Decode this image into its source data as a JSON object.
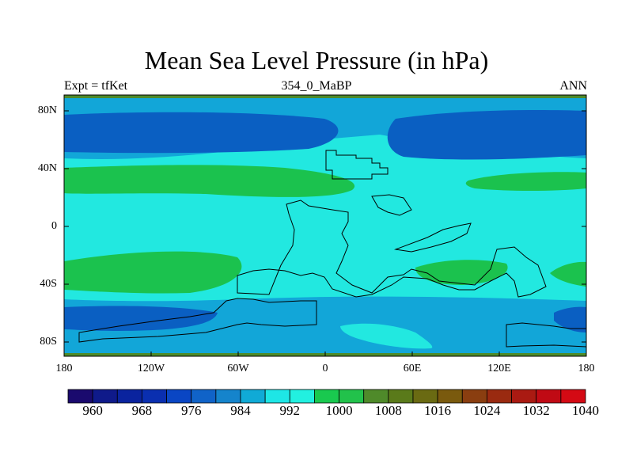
{
  "title": "Mean Sea Level Pressure (in hPa)",
  "subtitle_left": "Expt = tfKet",
  "subtitle_center": "354_0_MaBP",
  "subtitle_right": "ANN",
  "lat_ticks": [
    "80N",
    "40N",
    "0",
    "40S",
    "80S"
  ],
  "lon_ticks": [
    "180",
    "120W",
    "60W",
    "0",
    "60E",
    "120E",
    "180"
  ],
  "colorbar": {
    "labels": [
      "960",
      "968",
      "976",
      "984",
      "992",
      "1000",
      "1008",
      "1016",
      "1024",
      "1032",
      "1040"
    ],
    "colors": [
      "#1a0a6e",
      "#0f1a8a",
      "#0a239e",
      "#0a2fb0",
      "#0a46c4",
      "#1063c8",
      "#1584cc",
      "#10aad6",
      "#1ee6e6",
      "#22f0e0",
      "#19c94f",
      "#22c24b",
      "#4f8a2a",
      "#5a7a1a",
      "#6a6a12",
      "#7a5a0e",
      "#8a3e10",
      "#9a2a10",
      "#aa1a12",
      "#c00a14",
      "#d40a14"
    ]
  },
  "map_colors": {
    "deep_low": "#0a5fc2",
    "low": "#12a6d8",
    "mid": "#22e8e0",
    "high": "#1bc24e",
    "edge": "#4e8a2a"
  }
}
